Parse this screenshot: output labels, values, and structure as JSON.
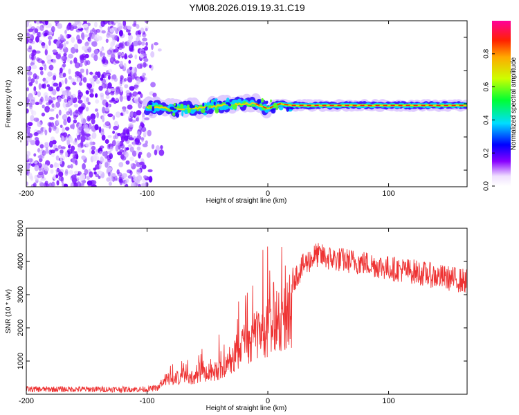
{
  "title": "YM08.2026.019.19.31.C19",
  "chart_data": [
    {
      "type": "heatmap",
      "name": "spectrogram",
      "xlabel": "Height of straight line (km)",
      "ylabel": "Frequency (Hz)",
      "xlim": [
        -200,
        165
      ],
      "ylim": [
        -50,
        50
      ],
      "xticks": [
        -200,
        -100,
        0,
        100
      ],
      "xtick_labels": [
        "-200",
        "-100",
        "0",
        "100"
      ],
      "yticks": [
        -40,
        -20,
        0,
        20,
        40
      ],
      "ytick_labels": [
        "-40",
        "-20",
        "0",
        "20",
        "40"
      ],
      "noise_region_x": [
        -200,
        -100
      ],
      "signal_line_points": [
        {
          "x": -100,
          "y": -2
        },
        {
          "x": -80,
          "y": -3
        },
        {
          "x": -60,
          "y": -3
        },
        {
          "x": -40,
          "y": -1
        },
        {
          "x": -20,
          "y": 0
        },
        {
          "x": -10,
          "y": 0
        },
        {
          "x": 0,
          "y": -3
        },
        {
          "x": 10,
          "y": 0
        },
        {
          "x": 20,
          "y": -1
        },
        {
          "x": 60,
          "y": -1
        },
        {
          "x": 100,
          "y": -1
        },
        {
          "x": 165,
          "y": -1
        }
      ],
      "colorbar": {
        "label": "Normalized spectral amplitude",
        "range": [
          0,
          1
        ],
        "ticks": [
          0.0,
          0.2,
          0.4,
          0.6,
          0.8
        ],
        "tick_labels": [
          "0.0",
          "0.2",
          "0.4",
          "0.6",
          "0.8"
        ]
      }
    },
    {
      "type": "line",
      "name": "snr",
      "xlabel": "Height of straight line (km)",
      "ylabel": "SNR (10 * v/v)",
      "xlim": [
        -200,
        165
      ],
      "ylim": [
        0,
        5000
      ],
      "xticks": [
        -200,
        -100,
        0,
        100
      ],
      "xtick_labels": [
        "-200",
        "-100",
        "0",
        "100"
      ],
      "yticks": [
        1000,
        2000,
        3000,
        4000,
        5000
      ],
      "ytick_labels": [
        "1000",
        "2000",
        "3000",
        "4000",
        "5000"
      ],
      "color": "#ee3333",
      "series_envelope": {
        "x": [
          -200,
          -100,
          -90,
          -85,
          -80,
          -70,
          -60,
          -50,
          -40,
          -30,
          -20,
          -15,
          -10,
          -5,
          0,
          10,
          20,
          30,
          40,
          50,
          60,
          80,
          100,
          120,
          140,
          165
        ],
        "y": [
          150,
          150,
          200,
          700,
          600,
          800,
          700,
          900,
          1100,
          1500,
          2200,
          2000,
          2600,
          2500,
          2700,
          3100,
          3400,
          3900,
          4200,
          4100,
          4050,
          3950,
          3800,
          3700,
          3550,
          3400
        ]
      }
    }
  ]
}
